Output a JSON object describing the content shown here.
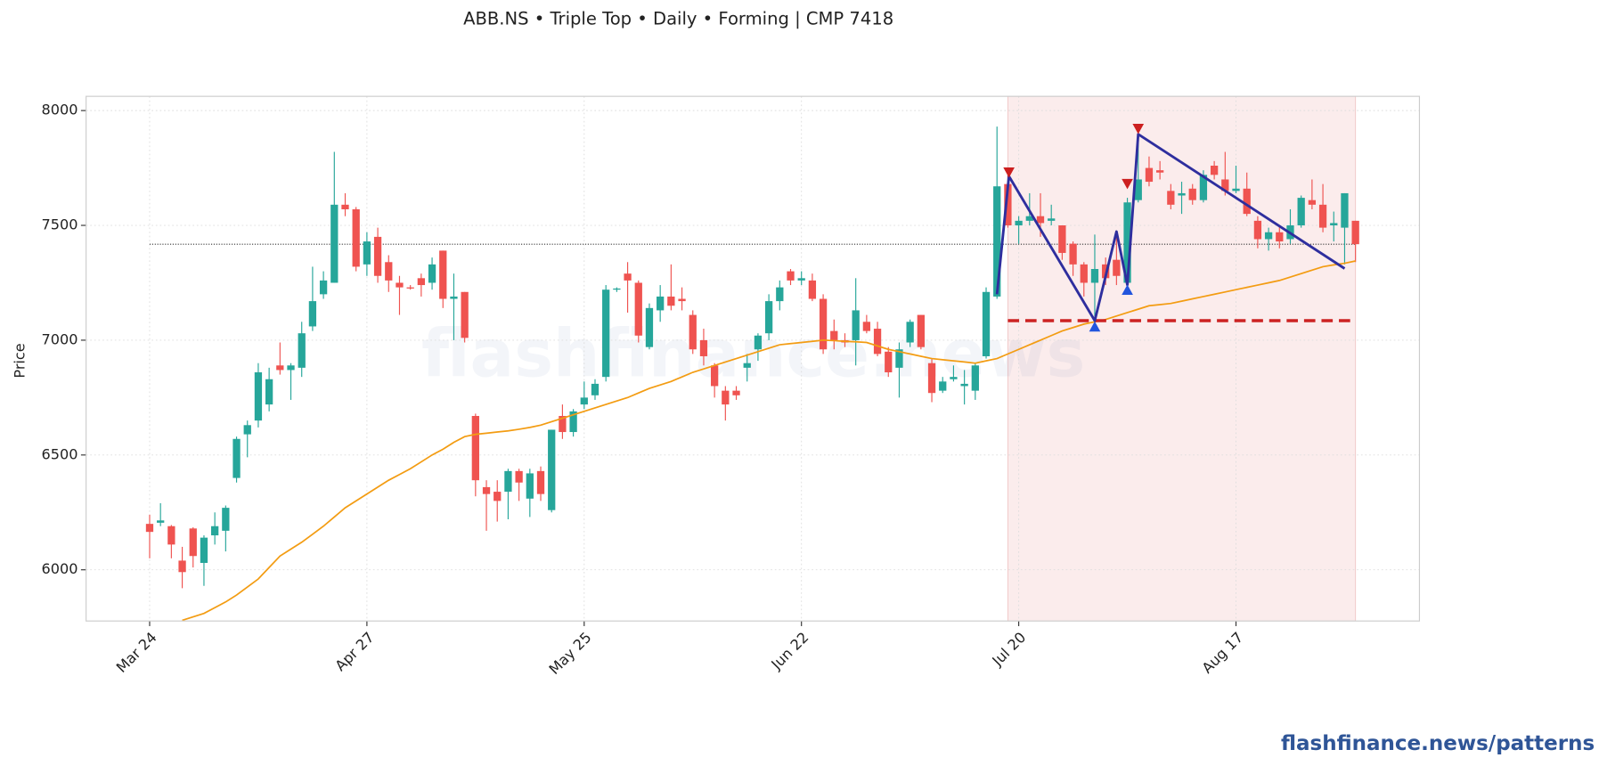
{
  "chart_data": {
    "type": "candlestick",
    "title": "ABB.NS  •  Triple Top  •  Daily  •  Forming  |  CMP 7418",
    "y_label": "Price",
    "watermark": "flashfinance.news",
    "footer": "flashfinance.news/patterns",
    "categories": [
      "Mar 24",
      null,
      null,
      null,
      null,
      null,
      null,
      null,
      null,
      null,
      null,
      null,
      null,
      null,
      null,
      null,
      null,
      null,
      null,
      null,
      "Apr 27",
      null,
      null,
      null,
      null,
      null,
      null,
      null,
      null,
      null,
      null,
      null,
      null,
      null,
      null,
      null,
      null,
      null,
      null,
      null,
      "May 25",
      null,
      null,
      null,
      null,
      null,
      null,
      null,
      null,
      null,
      null,
      null,
      null,
      null,
      null,
      null,
      null,
      null,
      null,
      null,
      "Jun 22",
      null,
      null,
      null,
      null,
      null,
      null,
      null,
      null,
      null,
      null,
      null,
      null,
      null,
      null,
      null,
      null,
      null,
      null,
      null,
      "Jul 20",
      null,
      null,
      null,
      null,
      null,
      null,
      null,
      null,
      null,
      null,
      null,
      null,
      null,
      null,
      null,
      null,
      null,
      null,
      null,
      "Aug 17",
      null,
      null,
      null,
      null,
      null,
      null,
      null,
      null,
      null,
      null,
      null
    ],
    "open": [
      6200,
      6205,
      6190,
      6040,
      6180,
      6030,
      6150,
      6170,
      6400,
      6590,
      6650,
      6720,
      6890,
      6870,
      6880,
      7060,
      7200,
      7250,
      7590,
      7570,
      7330,
      7450,
      7340,
      7250,
      7230,
      7270,
      7250,
      7390,
      7180,
      7210,
      6670,
      6360,
      6340,
      6340,
      6430,
      6310,
      6430,
      6260,
      6670,
      6600,
      6720,
      6760,
      6840,
      7220,
      7290,
      7250,
      6970,
      7130,
      7190,
      7180,
      7110,
      7000,
      6890,
      6780,
      6780,
      6880,
      6960,
      7030,
      7170,
      7300,
      7260,
      7260,
      7180,
      7040,
      7000,
      7000,
      7080,
      7050,
      6950,
      6880,
      6990,
      7110,
      6900,
      6780,
      6830,
      6800,
      6780,
      6930,
      7190,
      7680,
      7500,
      7520,
      7540,
      7520,
      7500,
      7420,
      7330,
      7250,
      7330,
      7350,
      7250,
      7610,
      7750,
      7740,
      7650,
      7630,
      7660,
      7610,
      7760,
      7700,
      7650,
      7660,
      7520,
      7440,
      7470,
      7440,
      7500,
      7610,
      7590,
      7500,
      7490,
      7520
    ],
    "high": [
      6240,
      6290,
      6195,
      6100,
      6185,
      6150,
      6250,
      6280,
      6580,
      6650,
      6900,
      6880,
      6990,
      6900,
      7080,
      7320,
      7300,
      7820,
      7640,
      7580,
      7470,
      7490,
      7370,
      7280,
      7240,
      7290,
      7360,
      7390,
      7290,
      7210,
      6680,
      6390,
      6390,
      6440,
      6440,
      6440,
      6450,
      6610,
      6720,
      6700,
      6820,
      6830,
      7240,
      7230,
      7340,
      7260,
      7160,
      7240,
      7330,
      7230,
      7130,
      7050,
      6900,
      6800,
      6800,
      6940,
      7030,
      7200,
      7260,
      7310,
      7300,
      7290,
      7200,
      7090,
      7030,
      7270,
      7110,
      7080,
      6970,
      6990,
      7090,
      7110,
      6920,
      6840,
      6890,
      6870,
      6900,
      7230,
      7930,
      7720,
      7540,
      7640,
      7640,
      7590,
      7500,
      7430,
      7340,
      7460,
      7360,
      7460,
      7620,
      7900,
      7800,
      7780,
      7680,
      7690,
      7680,
      7740,
      7780,
      7820,
      7760,
      7730,
      7540,
      7490,
      7500,
      7570,
      7630,
      7700,
      7680,
      7560,
      7640,
      7520
    ],
    "low": [
      6050,
      6190,
      6050,
      5920,
      6010,
      5930,
      6110,
      6080,
      6380,
      6490,
      6620,
      6690,
      6850,
      6740,
      6840,
      7040,
      7180,
      7250,
      7540,
      7300,
      7280,
      7250,
      7210,
      7110,
      7220,
      7190,
      7220,
      7140,
      7000,
      6990,
      6320,
      6170,
      6210,
      6220,
      6300,
      6230,
      6300,
      6250,
      6570,
      6580,
      6700,
      6740,
      6820,
      7210,
      7120,
      6990,
      6960,
      7080,
      7130,
      7130,
      6940,
      6890,
      6750,
      6650,
      6740,
      6820,
      6910,
      7000,
      7130,
      7240,
      7240,
      7170,
      6940,
      6960,
      6970,
      6890,
      7030,
      6930,
      6840,
      6750,
      6970,
      6960,
      6730,
      6770,
      6820,
      6720,
      6740,
      6920,
      7180,
      7490,
      7420,
      7500,
      7450,
      7500,
      7350,
      7280,
      7190,
      7100,
      7240,
      7240,
      7240,
      7600,
      7670,
      7700,
      7570,
      7550,
      7590,
      7600,
      7700,
      7630,
      7640,
      7540,
      7400,
      7390,
      7400,
      7420,
      7490,
      7570,
      7470,
      7430,
      7330,
      7340
    ],
    "close": [
      6165,
      6215,
      6110,
      5990,
      6060,
      6140,
      6190,
      6270,
      6570,
      6630,
      6860,
      6830,
      6870,
      6890,
      7030,
      7170,
      7260,
      7590,
      7570,
      7320,
      7430,
      7280,
      7260,
      7230,
      7225,
      7240,
      7330,
      7180,
      7190,
      7010,
      6390,
      6330,
      6300,
      6430,
      6380,
      6420,
      6330,
      6610,
      6600,
      6690,
      6750,
      6810,
      7220,
      7225,
      7260,
      7020,
      7140,
      7190,
      7150,
      7170,
      6960,
      6930,
      6800,
      6720,
      6760,
      6900,
      7020,
      7170,
      7230,
      7260,
      7270,
      7180,
      6960,
      7000,
      6990,
      7130,
      7040,
      6940,
      6860,
      6960,
      7080,
      6970,
      6770,
      6820,
      6840,
      6810,
      6890,
      7210,
      7670,
      7500,
      7520,
      7540,
      7510,
      7530,
      7380,
      7330,
      7250,
      7310,
      7270,
      7280,
      7600,
      7700,
      7690,
      7730,
      7590,
      7640,
      7610,
      7720,
      7720,
      7650,
      7660,
      7550,
      7440,
      7470,
      7430,
      7500,
      7620,
      7590,
      7490,
      7510,
      7640,
      7418
    ],
    "up_color": "#26a69a",
    "down_color": "#ef5350",
    "moving_average": {
      "color": "#f39c12",
      "values": [
        null,
        null,
        null,
        5780,
        5795,
        5810,
        5835,
        5860,
        5890,
        5925,
        5960,
        6010,
        6060,
        6090,
        6120,
        6155,
        6190,
        6230,
        6270,
        6300,
        6330,
        6360,
        6390,
        6415,
        6440,
        6470,
        6500,
        6525,
        6555,
        6580,
        6590,
        6595,
        6600,
        6605,
        6612,
        6620,
        6630,
        6645,
        6660,
        6675,
        6690,
        6705,
        6720,
        6735,
        6750,
        6770,
        6790,
        6805,
        6820,
        6840,
        6860,
        6875,
        6890,
        6905,
        6920,
        6935,
        6950,
        6965,
        6980,
        6985,
        6990,
        6995,
        7000,
        6998,
        6995,
        6993,
        6990,
        6975,
        6960,
        6950,
        6940,
        6930,
        6920,
        6915,
        6910,
        6905,
        6900,
        6910,
        6920,
        6940,
        6960,
        6980,
        7000,
        7020,
        7040,
        7055,
        7070,
        7080,
        7090,
        7105,
        7120,
        7135,
        7150,
        7155,
        7160,
        7170,
        7180,
        7190,
        7200,
        7210,
        7220,
        7230,
        7240,
        7250,
        7260,
        7275,
        7290,
        7305,
        7320,
        7328,
        7335,
        7345
      ]
    },
    "cmp_line": 7418,
    "support": {
      "value": 7085,
      "color": "#cc2222"
    },
    "highlight": {
      "range": [
        79,
        111
      ],
      "color": "#f9e4e4"
    },
    "pattern": {
      "color": "#2e2e9e",
      "x": [
        78,
        79.1,
        87,
        89,
        90,
        91,
        110
      ],
      "y": [
        7200,
        7714,
        7085,
        7473,
        7241,
        7897,
        7312
      ]
    },
    "peaks": {
      "color": "#cc1f1f",
      "x": [
        79.1,
        90,
        91
      ],
      "y": [
        7730,
        7680,
        7920
      ]
    },
    "troughs": {
      "color": "#2255dd",
      "x": [
        87,
        90
      ],
      "y": [
        7060,
        7220
      ]
    },
    "ylim": [
      5777,
      8062
    ],
    "yticks": [
      6000,
      6500,
      7000,
      7500,
      8000
    ],
    "grid": true
  }
}
